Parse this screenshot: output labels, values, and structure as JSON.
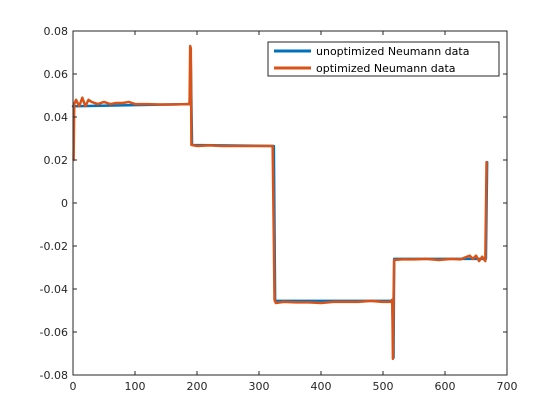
{
  "chart_data": {
    "type": "line",
    "title": "",
    "xlabel": "",
    "ylabel": "",
    "xlim": [
      0,
      700
    ],
    "ylim": [
      -0.08,
      0.08
    ],
    "x_ticks": [
      0,
      100,
      200,
      300,
      400,
      500,
      600,
      700
    ],
    "y_ticks": [
      -0.08,
      -0.06,
      -0.04,
      -0.02,
      0,
      0.02,
      0.04,
      0.06,
      0.08
    ],
    "x_tick_labels": [
      "0",
      "100",
      "200",
      "300",
      "400",
      "500",
      "600",
      "700"
    ],
    "y_tick_labels": [
      "-0.08",
      "-0.06",
      "-0.04",
      "-0.02",
      "0",
      "0.02",
      "0.04",
      "0.06",
      "0.08"
    ],
    "grid": false,
    "legend_position": "top-right",
    "series": [
      {
        "name": "unoptimized Neumann data",
        "color": "#0072BD",
        "points": [
          [
            0,
            0.045
          ],
          [
            185,
            0.046
          ],
          [
            188,
            0.046
          ],
          [
            190,
            0.066
          ],
          [
            192,
            0.027
          ],
          [
            322,
            0.0265
          ],
          [
            324,
            0.0265
          ],
          [
            326,
            -0.0455
          ],
          [
            513,
            -0.0455
          ],
          [
            515,
            -0.045
          ],
          [
            517,
            -0.072
          ],
          [
            518,
            -0.026
          ],
          [
            664,
            -0.026
          ],
          [
            666,
            -0.026
          ],
          [
            668,
            0.019
          ]
        ]
      },
      {
        "name": "optimized Neumann data",
        "color": "#D95319",
        "points": [
          [
            1,
            0.02
          ],
          [
            2,
            0.046
          ],
          [
            5,
            0.048
          ],
          [
            10,
            0.045
          ],
          [
            15,
            0.049
          ],
          [
            20,
            0.045
          ],
          [
            25,
            0.048
          ],
          [
            30,
            0.047
          ],
          [
            40,
            0.046
          ],
          [
            50,
            0.047
          ],
          [
            60,
            0.046
          ],
          [
            70,
            0.0465
          ],
          [
            80,
            0.0465
          ],
          [
            90,
            0.047
          ],
          [
            100,
            0.046
          ],
          [
            120,
            0.046
          ],
          [
            140,
            0.0458
          ],
          [
            160,
            0.0458
          ],
          [
            185,
            0.046
          ],
          [
            188,
            0.046
          ],
          [
            189,
            0.073
          ],
          [
            190,
            0.072
          ],
          [
            191,
            0.027
          ],
          [
            200,
            0.0265
          ],
          [
            220,
            0.0268
          ],
          [
            240,
            0.0265
          ],
          [
            260,
            0.0265
          ],
          [
            280,
            0.0265
          ],
          [
            300,
            0.0265
          ],
          [
            322,
            0.0265
          ],
          [
            324,
            -0.019
          ],
          [
            325,
            -0.045
          ],
          [
            327,
            -0.0465
          ],
          [
            340,
            -0.046
          ],
          [
            360,
            -0.0462
          ],
          [
            380,
            -0.0462
          ],
          [
            400,
            -0.0465
          ],
          [
            420,
            -0.046
          ],
          [
            440,
            -0.046
          ],
          [
            460,
            -0.046
          ],
          [
            480,
            -0.0455
          ],
          [
            500,
            -0.046
          ],
          [
            513,
            -0.046
          ],
          [
            515,
            -0.045
          ],
          [
            516,
            -0.0725
          ],
          [
            517,
            -0.045
          ],
          [
            518,
            -0.0265
          ],
          [
            530,
            -0.0262
          ],
          [
            550,
            -0.0262
          ],
          [
            570,
            -0.026
          ],
          [
            590,
            -0.0265
          ],
          [
            610,
            -0.026
          ],
          [
            625,
            -0.0262
          ],
          [
            640,
            -0.0245
          ],
          [
            645,
            -0.026
          ],
          [
            650,
            -0.0245
          ],
          [
            655,
            -0.027
          ],
          [
            660,
            -0.025
          ],
          [
            665,
            -0.027
          ],
          [
            667,
            0.019
          ]
        ]
      }
    ]
  }
}
